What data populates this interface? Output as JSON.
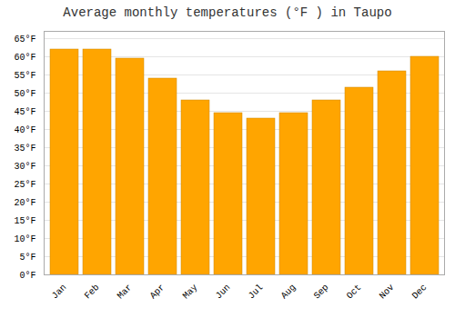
{
  "chart_data": {
    "type": "bar",
    "title": "Average monthly temperatures (°F ) in Taupo",
    "categories": [
      "Jan",
      "Feb",
      "Mar",
      "Apr",
      "May",
      "Jun",
      "Jul",
      "Aug",
      "Sep",
      "Oct",
      "Nov",
      "Dec"
    ],
    "values": [
      62,
      62,
      59.5,
      54,
      48,
      44.5,
      43,
      44.5,
      48,
      51.5,
      56,
      60
    ],
    "color": "#FFA500",
    "ylim": [
      0,
      67
    ],
    "yticks": [
      {
        "value": 0,
        "label": "0°F"
      },
      {
        "value": 5,
        "label": "5°F"
      },
      {
        "value": 10,
        "label": "10°F"
      },
      {
        "value": 15,
        "label": "15°F"
      },
      {
        "value": 20,
        "label": "20°F"
      },
      {
        "value": 25,
        "label": "25°F"
      },
      {
        "value": 30,
        "label": "30°F"
      },
      {
        "value": 35,
        "label": "35°F"
      },
      {
        "value": 40,
        "label": "40°F"
      },
      {
        "value": 45,
        "label": "45°F"
      },
      {
        "value": 50,
        "label": "50°F"
      },
      {
        "value": 55,
        "label": "55°F"
      },
      {
        "value": 60,
        "label": "60°F"
      },
      {
        "value": 65,
        "label": "65°F"
      }
    ],
    "grid": true
  }
}
